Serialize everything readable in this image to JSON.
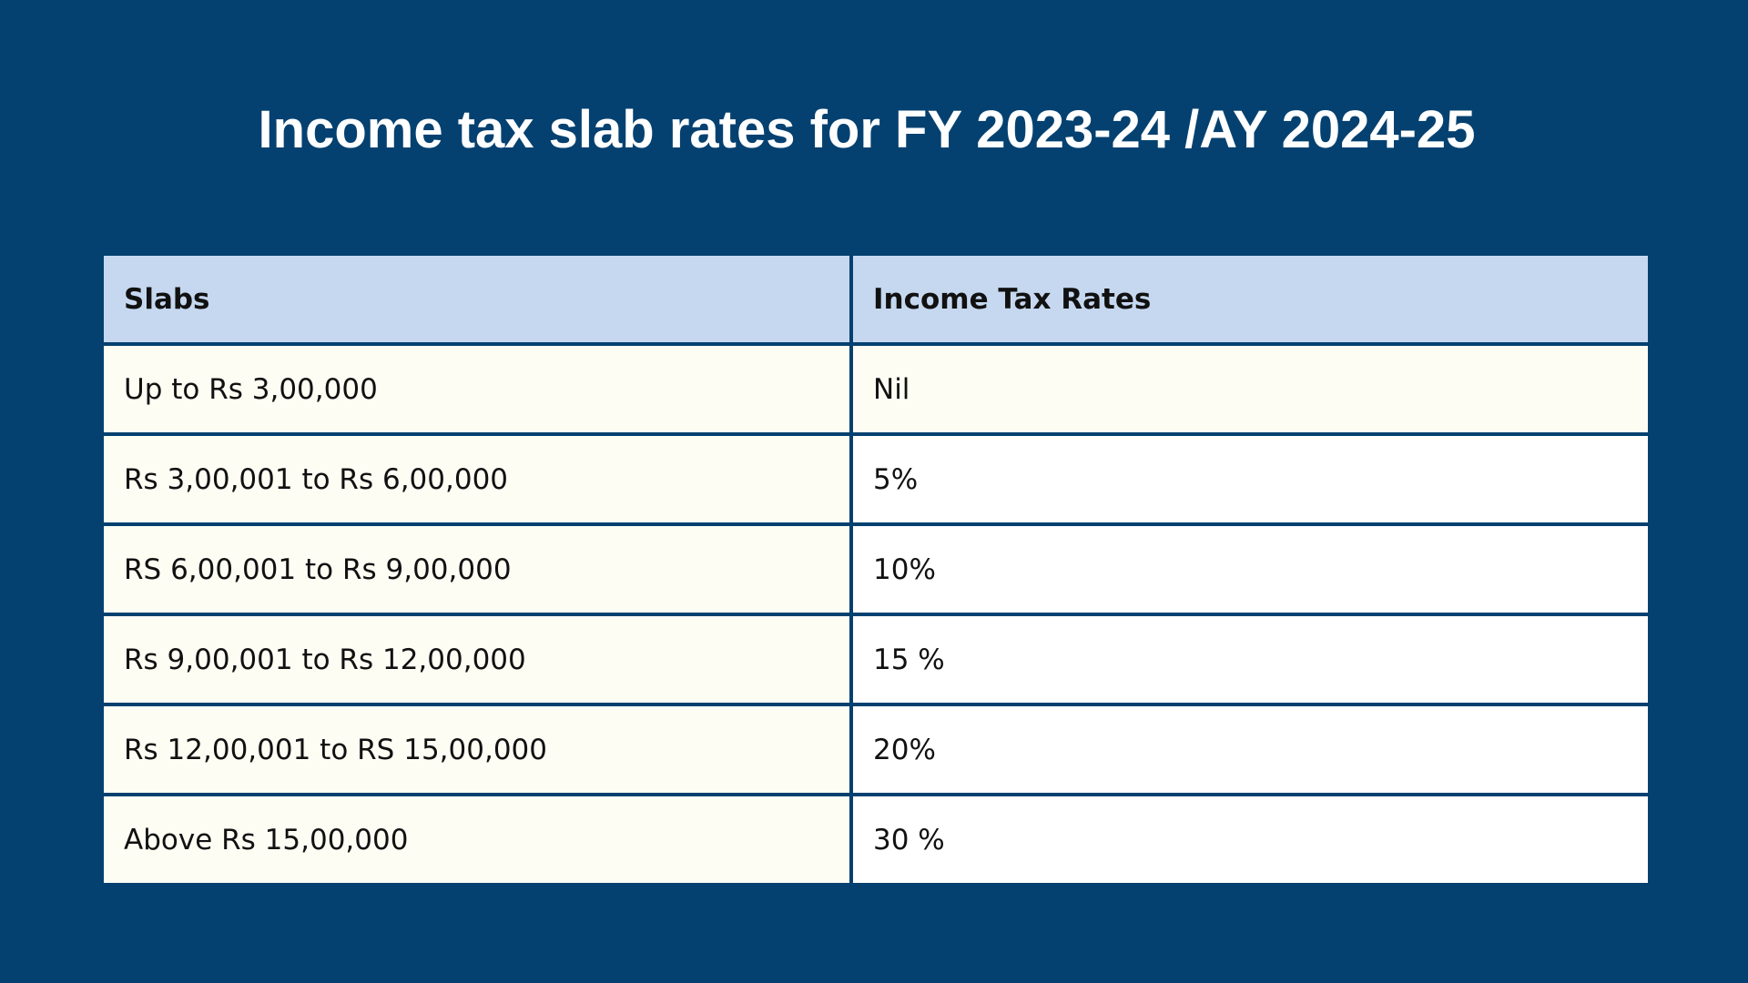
{
  "title": "Income tax slab rates for FY 2023-24 /AY 2024-25",
  "table": {
    "headers": [
      "Slabs",
      "Income Tax Rates"
    ],
    "rows": [
      {
        "slab": "Up to Rs 3,00,000",
        "rate": "Nil"
      },
      {
        "slab": "Rs 3,00,001 to Rs 6,00,000",
        "rate": "5%"
      },
      {
        "slab": "RS 6,00,001 to Rs 9,00,000",
        "rate": "10%"
      },
      {
        "slab": "Rs 9,00,001 to Rs 12,00,000",
        "rate": "15 %"
      },
      {
        "slab": "Rs 12,00,001 to RS 15,00,000",
        "rate": "20%"
      },
      {
        "slab": "Above Rs 15,00,000",
        "rate": "30 %"
      }
    ]
  },
  "colors": {
    "background": "#044170",
    "header_fill": "#c6d8f0",
    "row_fill": "#fdfdf4",
    "title_text": "#ffffff"
  }
}
